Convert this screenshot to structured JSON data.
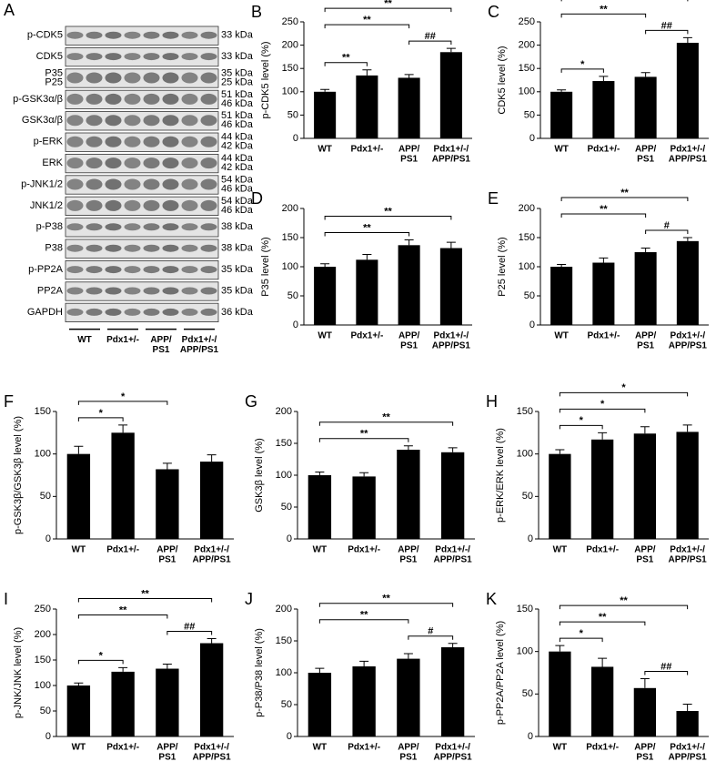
{
  "blot": {
    "panel": "A",
    "rows": [
      {
        "label": [
          "p-CDK5"
        ],
        "sizes": [
          "33 kDa"
        ]
      },
      {
        "label": [
          "CDK5"
        ],
        "sizes": [
          "33 kDa"
        ]
      },
      {
        "label": [
          "P35",
          "P25"
        ],
        "sizes": [
          "35 kDa",
          "25 kDa"
        ]
      },
      {
        "label": [
          "p-GSK3α/β"
        ],
        "sizes": [
          "51 kDa",
          "46 kDa"
        ]
      },
      {
        "label": [
          "GSK3α/β"
        ],
        "sizes": [
          "51 kDa",
          "46 kDa"
        ]
      },
      {
        "label": [
          "p-ERK"
        ],
        "sizes": [
          "44 kDa",
          "42 kDa"
        ]
      },
      {
        "label": [
          "ERK"
        ],
        "sizes": [
          "44 kDa",
          "42 kDa"
        ]
      },
      {
        "label": [
          "p-JNK1/2"
        ],
        "sizes": [
          "54 kDa",
          "46 kDa"
        ]
      },
      {
        "label": [
          "JNK1/2"
        ],
        "sizes": [
          "54 kDa",
          "46 kDa"
        ]
      },
      {
        "label": [
          "p-P38"
        ],
        "sizes": [
          "38 kDa"
        ]
      },
      {
        "label": [
          "P38"
        ],
        "sizes": [
          "38 kDa"
        ]
      },
      {
        "label": [
          "p-PP2A"
        ],
        "sizes": [
          "35 kDa"
        ]
      },
      {
        "label": [
          "PP2A"
        ],
        "sizes": [
          "35 kDa"
        ]
      },
      {
        "label": [
          "GAPDH"
        ],
        "sizes": [
          "36 kDa"
        ]
      }
    ],
    "groups": [
      [
        "WT"
      ],
      [
        "Pdx1+/-"
      ],
      [
        "APP/",
        "PS1"
      ],
      [
        "Pdx1+/-/",
        "APP/PS1"
      ]
    ]
  },
  "chart_data": [
    {
      "type": "bar",
      "panel": "B",
      "ylabel": "p-CDK5 level (%)",
      "categories": [
        [
          "WT"
        ],
        [
          "Pdx1+/-"
        ],
        [
          "APP/",
          "PS1"
        ],
        [
          "Pdx1+/-/",
          "APP/PS1"
        ]
      ],
      "values": [
        100,
        135,
        130,
        185
      ],
      "errors": [
        5,
        12,
        7,
        8
      ],
      "color": "#000000",
      "ylim": [
        0,
        250
      ],
      "yticks": [
        0,
        50,
        100,
        150,
        200,
        250
      ],
      "brackets": [
        {
          "pair": [
            0,
            1
          ],
          "label": "**"
        },
        {
          "pair": [
            2,
            3
          ],
          "label": "##"
        },
        {
          "pair": [
            0,
            2
          ],
          "label": "**"
        },
        {
          "pair": [
            0,
            3
          ],
          "label": "**"
        }
      ]
    },
    {
      "type": "bar",
      "panel": "C",
      "ylabel": "CDK5 level (%)",
      "categories": [
        [
          "WT"
        ],
        [
          "Pdx1+/-"
        ],
        [
          "APP/",
          "PS1"
        ],
        [
          "Pdx1+/-/",
          "APP/PS1"
        ]
      ],
      "values": [
        100,
        123,
        132,
        205
      ],
      "errors": [
        4,
        10,
        9,
        11
      ],
      "color": "#000000",
      "ylim": [
        0,
        250
      ],
      "yticks": [
        0,
        50,
        100,
        150,
        200,
        250
      ],
      "brackets": [
        {
          "pair": [
            0,
            1
          ],
          "label": "*"
        },
        {
          "pair": [
            2,
            3
          ],
          "label": "##"
        },
        {
          "pair": [
            0,
            2
          ],
          "label": "**"
        },
        {
          "pair": [
            0,
            3
          ],
          "label": "**"
        }
      ]
    },
    {
      "type": "bar",
      "panel": "D",
      "ylabel": "P35 level (%)",
      "categories": [
        [
          "WT"
        ],
        [
          "Pdx1+/-"
        ],
        [
          "APP/",
          "PS1"
        ],
        [
          "Pdx1+/-/",
          "APP/PS1"
        ]
      ],
      "values": [
        100,
        112,
        137,
        132
      ],
      "errors": [
        5,
        9,
        9,
        10
      ],
      "color": "#000000",
      "ylim": [
        0,
        200
      ],
      "yticks": [
        0,
        50,
        100,
        150,
        200
      ],
      "brackets": [
        {
          "pair": [
            0,
            2
          ],
          "label": "**"
        },
        {
          "pair": [
            0,
            3
          ],
          "label": "**"
        }
      ]
    },
    {
      "type": "bar",
      "panel": "E",
      "ylabel": "P25 level (%)",
      "categories": [
        [
          "WT"
        ],
        [
          "Pdx1+/-"
        ],
        [
          "APP/",
          "PS1"
        ],
        [
          "Pdx1+/-/",
          "APP/PS1"
        ]
      ],
      "values": [
        100,
        107,
        125,
        144
      ],
      "errors": [
        4,
        8,
        7,
        6
      ],
      "color": "#000000",
      "ylim": [
        0,
        200
      ],
      "yticks": [
        0,
        50,
        100,
        150,
        200
      ],
      "brackets": [
        {
          "pair": [
            2,
            3
          ],
          "label": "#"
        },
        {
          "pair": [
            0,
            2
          ],
          "label": "**"
        },
        {
          "pair": [
            0,
            3
          ],
          "label": "**"
        }
      ]
    },
    {
      "type": "bar",
      "panel": "F",
      "ylabel": "p-GSK3β/GSK3β level (%)",
      "categories": [
        [
          "WT"
        ],
        [
          "Pdx1+/-"
        ],
        [
          "APP/",
          "PS1"
        ],
        [
          "Pdx1+/-/",
          "APP/PS1"
        ]
      ],
      "values": [
        100,
        125,
        82,
        91
      ],
      "errors": [
        9,
        9,
        7,
        8
      ],
      "color": "#000000",
      "ylim": [
        0,
        150
      ],
      "yticks": [
        0,
        50,
        100,
        150
      ],
      "brackets": [
        {
          "pair": [
            0,
            1
          ],
          "label": "*"
        },
        {
          "pair": [
            0,
            2
          ],
          "label": "*"
        }
      ]
    },
    {
      "type": "bar",
      "panel": "G",
      "ylabel": "GSK3β level (%)",
      "categories": [
        [
          "WT"
        ],
        [
          "Pdx1+/-"
        ],
        [
          "APP/",
          "PS1"
        ],
        [
          "Pdx1+/-/",
          "APP/PS1"
        ]
      ],
      "values": [
        100,
        98,
        140,
        136
      ],
      "errors": [
        5,
        6,
        6,
        7
      ],
      "color": "#000000",
      "ylim": [
        0,
        200
      ],
      "yticks": [
        0,
        50,
        100,
        150,
        200
      ],
      "brackets": [
        {
          "pair": [
            0,
            2
          ],
          "label": "**"
        },
        {
          "pair": [
            0,
            3
          ],
          "label": "**"
        }
      ]
    },
    {
      "type": "bar",
      "panel": "H",
      "ylabel": "p-ERK/ERK level (%)",
      "categories": [
        [
          "WT"
        ],
        [
          "Pdx1+/-"
        ],
        [
          "APP/",
          "PS1"
        ],
        [
          "Pdx1+/-/",
          "APP/PS1"
        ]
      ],
      "values": [
        100,
        117,
        124,
        126
      ],
      "errors": [
        5,
        8,
        8,
        8
      ],
      "color": "#000000",
      "ylim": [
        0,
        150
      ],
      "yticks": [
        0,
        50,
        100,
        150
      ],
      "brackets": [
        {
          "pair": [
            0,
            1
          ],
          "label": "*"
        },
        {
          "pair": [
            0,
            2
          ],
          "label": "*"
        },
        {
          "pair": [
            0,
            3
          ],
          "label": "*"
        }
      ]
    },
    {
      "type": "bar",
      "panel": "I",
      "ylabel": "p-JNK/JNK level (%)",
      "categories": [
        [
          "WT"
        ],
        [
          "Pdx1+/-"
        ],
        [
          "APP/",
          "PS1"
        ],
        [
          "Pdx1+/-/",
          "APP/PS1"
        ]
      ],
      "values": [
        100,
        127,
        133,
        183
      ],
      "errors": [
        5,
        8,
        9,
        9
      ],
      "color": "#000000",
      "ylim": [
        0,
        250
      ],
      "yticks": [
        0,
        50,
        100,
        150,
        200,
        250
      ],
      "brackets": [
        {
          "pair": [
            0,
            1
          ],
          "label": "*"
        },
        {
          "pair": [
            2,
            3
          ],
          "label": "##"
        },
        {
          "pair": [
            0,
            2
          ],
          "label": "**"
        },
        {
          "pair": [
            0,
            3
          ],
          "label": "**"
        }
      ]
    },
    {
      "type": "bar",
      "panel": "J",
      "ylabel": "p-P38/P38 level (%)",
      "categories": [
        [
          "WT"
        ],
        [
          "Pdx1+/-"
        ],
        [
          "APP/",
          "PS1"
        ],
        [
          "Pdx1+/-/",
          "APP/PS1"
        ]
      ],
      "values": [
        100,
        110,
        122,
        140
      ],
      "errors": [
        7,
        8,
        8,
        6
      ],
      "color": "#000000",
      "ylim": [
        0,
        200
      ],
      "yticks": [
        0,
        50,
        100,
        150,
        200
      ],
      "brackets": [
        {
          "pair": [
            2,
            3
          ],
          "label": "#"
        },
        {
          "pair": [
            0,
            2
          ],
          "label": "**"
        },
        {
          "pair": [
            0,
            3
          ],
          "label": "**"
        }
      ]
    },
    {
      "type": "bar",
      "panel": "K",
      "ylabel": "p-PP2A/PP2A level (%)",
      "categories": [
        [
          "WT"
        ],
        [
          "Pdx1+/-"
        ],
        [
          "APP/",
          "PS1"
        ],
        [
          "Pdx1+/-/",
          "APP/PS1"
        ]
      ],
      "values": [
        100,
        82,
        57,
        30
      ],
      "errors": [
        7,
        10,
        11,
        8
      ],
      "color": "#000000",
      "ylim": [
        0,
        150
      ],
      "yticks": [
        0,
        50,
        100,
        150
      ],
      "brackets": [
        {
          "pair": [
            0,
            1
          ],
          "label": "*"
        },
        {
          "pair": [
            2,
            3
          ],
          "label": "##"
        },
        {
          "pair": [
            0,
            2
          ],
          "label": "**"
        },
        {
          "pair": [
            0,
            3
          ],
          "label": "**"
        }
      ]
    }
  ]
}
